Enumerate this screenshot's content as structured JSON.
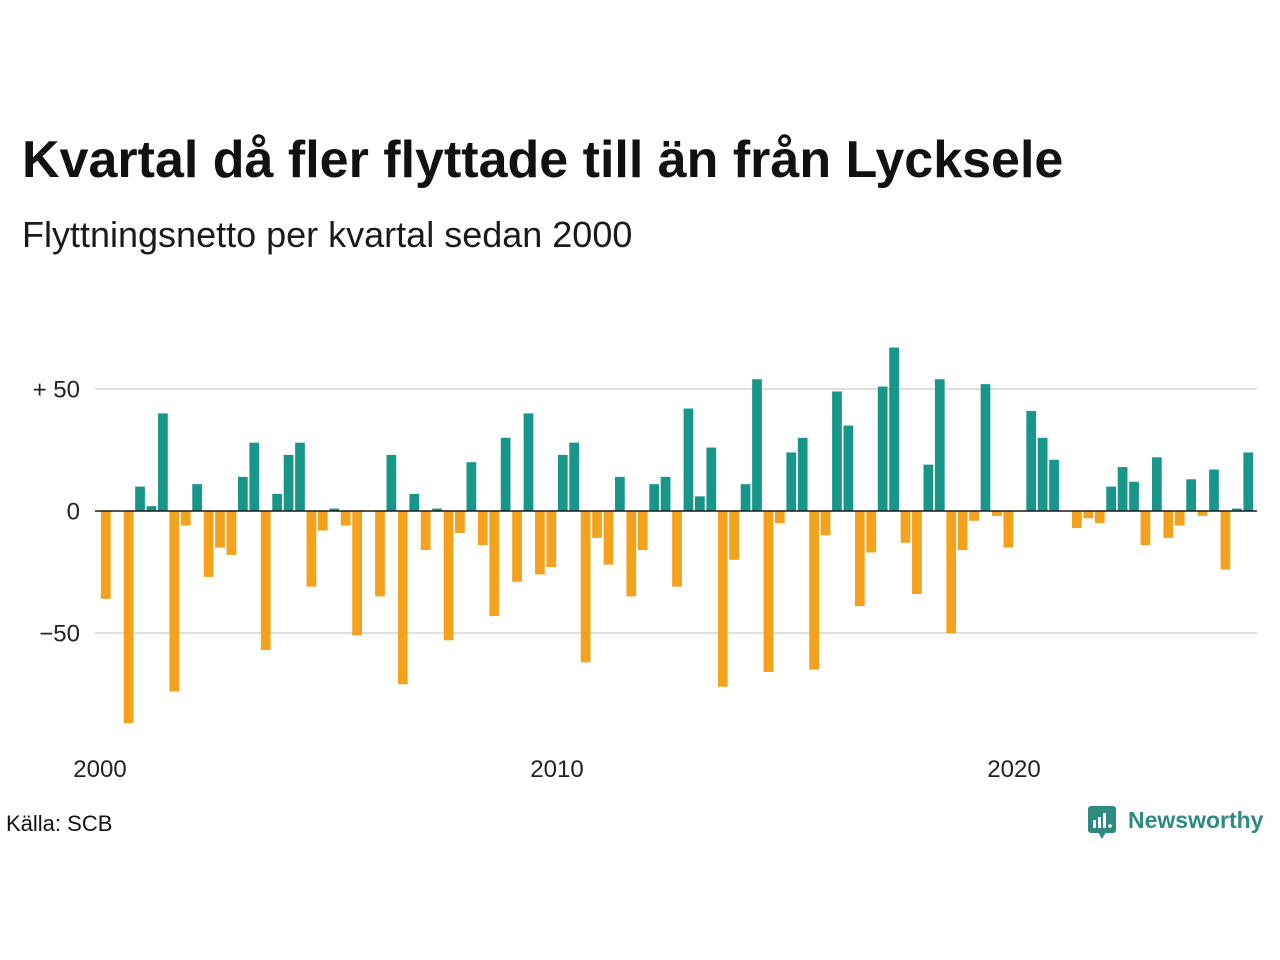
{
  "chart_data": {
    "type": "bar",
    "title": "Kvartal då fler flyttade till än från Lycksele",
    "subtitle": "Flyttningsnetto per kvartal sedan 2000",
    "x": [
      "2000-01-01",
      "2000-04-01",
      "2000-07-01",
      "2000-10-01",
      "2001-01-01",
      "2001-04-01",
      "2001-07-01",
      "2001-10-01",
      "2002-01-01",
      "2002-04-01",
      "2002-07-01",
      "2002-10-01",
      "2003-01-01",
      "2003-04-01",
      "2003-07-01",
      "2003-10-01",
      "2004-01-01",
      "2004-04-01",
      "2004-07-01",
      "2004-10-01",
      "2005-01-01",
      "2005-04-01",
      "2005-07-01",
      "2005-10-01",
      "2006-01-01",
      "2006-04-01",
      "2006-07-01",
      "2006-10-01",
      "2007-01-01",
      "2007-04-01",
      "2007-07-01",
      "2007-10-01",
      "2008-01-01",
      "2008-04-01",
      "2008-07-01",
      "2008-10-01",
      "2009-01-01",
      "2009-04-01",
      "2009-07-01",
      "2009-10-01",
      "2010-01-01",
      "2010-04-01",
      "2010-07-01",
      "2010-10-01",
      "2011-01-01",
      "2011-04-01",
      "2011-07-01",
      "2011-10-01",
      "2012-01-01",
      "2012-04-01",
      "2012-07-01",
      "2012-10-01",
      "2013-01-01",
      "2013-04-01",
      "2013-07-01",
      "2013-10-01",
      "2014-01-01",
      "2014-04-01",
      "2014-07-01",
      "2014-10-01",
      "2015-01-01",
      "2015-04-01",
      "2015-07-01",
      "2015-10-01",
      "2016-01-01",
      "2016-04-01",
      "2016-07-01",
      "2016-10-01",
      "2017-01-01",
      "2017-04-01",
      "2017-07-01",
      "2017-10-01",
      "2018-01-01",
      "2018-04-01",
      "2018-07-01",
      "2018-10-01",
      "2019-01-01",
      "2019-04-01",
      "2019-07-01",
      "2019-10-01",
      "2020-01-01",
      "2020-04-01",
      "2020-07-01",
      "2020-10-01",
      "2021-01-01",
      "2021-04-01",
      "2021-07-01",
      "2021-10-01",
      "2022-01-01",
      "2022-04-01",
      "2022-07-01",
      "2022-10-01",
      "2023-01-01",
      "2023-04-01",
      "2023-07-01",
      "2023-10-01",
      "2024-01-01",
      "2024-04-01",
      "2024-07-01",
      "2024-10-01",
      "2025-01-01"
    ],
    "values": [
      -36,
      0,
      -87,
      10,
      2,
      40,
      -74,
      -6,
      11,
      -27,
      -15,
      -18,
      14,
      28,
      -57,
      7,
      23,
      28,
      -31,
      -8,
      1,
      -6,
      -51,
      0,
      -35,
      23,
      -71,
      7,
      -16,
      1,
      -53,
      -9,
      20,
      -14,
      -43,
      30,
      -29,
      40,
      -26,
      -23,
      23,
      28,
      -62,
      -11,
      -22,
      14,
      -35,
      -16,
      11,
      14,
      -31,
      42,
      6,
      26,
      -72,
      -20,
      11,
      54,
      -66,
      -5,
      24,
      30,
      -65,
      -10,
      49,
      35,
      -39,
      -17,
      51,
      67,
      -13,
      -34,
      19,
      54,
      -50,
      -16,
      -4,
      52,
      -2,
      -15,
      0,
      41,
      30,
      21,
      0,
      -7,
      -3,
      -5,
      10,
      18,
      12,
      -14,
      22,
      -11,
      -6,
      13,
      -2,
      17,
      -24,
      1,
      24
    ],
    "ylim": [
      -90,
      70
    ],
    "yticks": [
      50,
      0,
      -50
    ],
    "ytick_labels": [
      "+ 50",
      "0",
      "−50"
    ],
    "xticks": [
      "2000-01-01",
      "2010-01-01",
      "2020-01-01"
    ],
    "xtick_labels": [
      "2000",
      "2010",
      "2020"
    ],
    "grid": true
  },
  "colors": {
    "positive": "#18968a",
    "negative": "#f4a11e",
    "grid": "#dedede",
    "zero_line": "#1a1a1a"
  },
  "source": "Källa: SCB",
  "logo": {
    "text": "Newsworthy",
    "icon": "newsworthy-logo-icon",
    "color": "#2e8b7f"
  }
}
